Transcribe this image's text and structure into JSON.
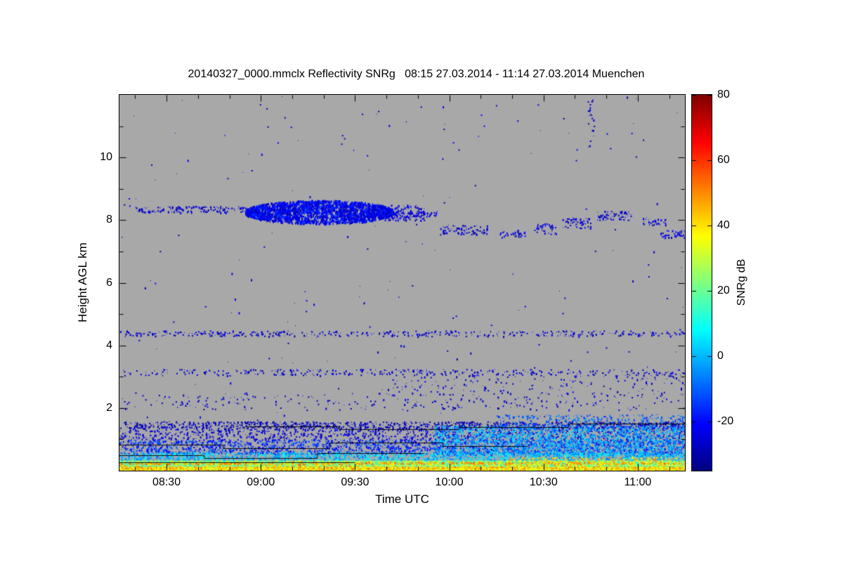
{
  "chart_data": {
    "type": "heatmap",
    "title": "20140327_0000.mmclx Reflectivity SNRg   08:15 27.03.2014 - 11:14 27.03.2014 Muenchen",
    "xlabel": "Time UTC",
    "ylabel": "Height AGL km",
    "x_start": "08:15",
    "x_end": "11:15",
    "x_minor_step_min": 10,
    "x_ticks": [
      {
        "time": "08:30",
        "label": "08:30"
      },
      {
        "time": "09:00",
        "label": "09:00"
      },
      {
        "time": "09:30",
        "label": "09:30"
      },
      {
        "time": "10:00",
        "label": "10:00"
      },
      {
        "time": "10:30",
        "label": "10:30"
      },
      {
        "time": "11:00",
        "label": "11:00"
      }
    ],
    "y_range": [
      0,
      12
    ],
    "y_minor_step": 1,
    "y_ticks": [
      {
        "value": 2,
        "label": "2"
      },
      {
        "value": 4,
        "label": "4"
      },
      {
        "value": 6,
        "label": "6"
      },
      {
        "value": 8,
        "label": "8"
      },
      {
        "value": 10,
        "label": "10"
      }
    ],
    "background_color": "#a8a8a8",
    "colorbar": {
      "label": "SNRg dB",
      "range": [
        -35,
        80
      ],
      "colormap": "jet",
      "ticks": [
        {
          "value": -20,
          "label": "-20"
        },
        {
          "value": 0,
          "label": "0"
        },
        {
          "value": 20,
          "label": "20"
        },
        {
          "value": 40,
          "label": "40"
        },
        {
          "value": 60,
          "label": "60"
        },
        {
          "value": 80,
          "label": "80"
        }
      ]
    },
    "regions": [
      {
        "name": "noise-speckle",
        "t0": "08:15",
        "t1": "11:15",
        "h0": 0.0,
        "h1": 12.0,
        "density": 0.002,
        "v": [
          -30,
          -20
        ],
        "shape": "speckle"
      },
      {
        "name": "vertical-streak",
        "t0": "10:44",
        "t1": "10:46",
        "h0": 10.3,
        "h1": 11.9,
        "density": 0.12,
        "v": [
          -30,
          -24
        ],
        "shape": "speckle"
      },
      {
        "name": "cirrus-leading-line",
        "t0": "08:20",
        "t1": "08:57",
        "h0": 8.25,
        "h1": 8.45,
        "density": 0.4,
        "v": [
          -30,
          -22
        ],
        "shape": "speckle"
      },
      {
        "name": "cirrus-main-cloud",
        "t0": "08:55",
        "t1": "09:42",
        "h0": 7.9,
        "h1": 8.65,
        "density": 0.85,
        "v": [
          -30,
          -14
        ],
        "shape": "lens"
      },
      {
        "name": "cirrus-extension",
        "t0": "09:25",
        "t1": "09:52",
        "h0": 8.0,
        "h1": 8.5,
        "density": 0.4,
        "v": [
          -30,
          -20
        ],
        "shape": "speckle"
      },
      {
        "name": "cirrus-trailing-line",
        "t0": "09:42",
        "t1": "09:56",
        "h0": 8.1,
        "h1": 8.3,
        "density": 0.4,
        "v": [
          -28,
          -20
        ],
        "shape": "speckle"
      },
      {
        "name": "patch-1000",
        "t0": "09:57",
        "t1": "10:12",
        "h0": 7.55,
        "h1": 7.85,
        "density": 0.4,
        "v": [
          -30,
          -20
        ],
        "shape": "speckle"
      },
      {
        "name": "patch-1017",
        "t0": "10:16",
        "t1": "10:24",
        "h0": 7.45,
        "h1": 7.7,
        "density": 0.3,
        "v": [
          -30,
          -20
        ],
        "shape": "speckle"
      },
      {
        "name": "patch-1028",
        "t0": "10:27",
        "t1": "10:34",
        "h0": 7.55,
        "h1": 7.9,
        "density": 0.28,
        "v": [
          -30,
          -20
        ],
        "shape": "speckle"
      },
      {
        "name": "patch-1040",
        "t0": "10:36",
        "t1": "10:45",
        "h0": 7.75,
        "h1": 8.1,
        "density": 0.32,
        "v": [
          -30,
          -20
        ],
        "shape": "speckle"
      },
      {
        "name": "patch-1052",
        "t0": "10:47",
        "t1": "10:58",
        "h0": 8.0,
        "h1": 8.3,
        "density": 0.4,
        "v": [
          -30,
          -20
        ],
        "shape": "speckle"
      },
      {
        "name": "patch-1105",
        "t0": "11:01",
        "t1": "11:09",
        "h0": 7.85,
        "h1": 8.1,
        "density": 0.3,
        "v": [
          -30,
          -20
        ],
        "shape": "speckle"
      },
      {
        "name": "patch-1111",
        "t0": "11:07",
        "t1": "11:15",
        "h0": 7.45,
        "h1": 7.7,
        "density": 0.35,
        "v": [
          -30,
          -20
        ],
        "shape": "speckle"
      },
      {
        "name": "layer-4p4km",
        "t0": "08:15",
        "t1": "11:15",
        "h0": 4.3,
        "h1": 4.48,
        "density": 0.22,
        "v": [
          -30,
          -22
        ],
        "shape": "speckle"
      },
      {
        "name": "layer-3p2km",
        "t0": "08:15",
        "t1": "11:15",
        "h0": 3.05,
        "h1": 3.25,
        "density": 0.16,
        "v": [
          -30,
          -22
        ],
        "shape": "speckle"
      },
      {
        "name": "band-2km",
        "t0": "08:15",
        "t1": "11:15",
        "h0": 1.95,
        "h1": 2.5,
        "density": 0.045,
        "v": [
          -30,
          -22
        ],
        "shape": "speckle"
      },
      {
        "name": "band-2p7km-right",
        "t0": "09:40",
        "t1": "11:15",
        "h0": 2.4,
        "h1": 3.1,
        "density": 0.05,
        "v": [
          -30,
          -22
        ],
        "shape": "speckle"
      },
      {
        "name": "pbl-top-dark-line",
        "t0": "08:15",
        "t1": "11:15",
        "h0": 1.35,
        "h1": 1.58,
        "density": 0.5,
        "v": [
          -32,
          -24
        ],
        "shape": "speckle"
      },
      {
        "name": "pbl-upper",
        "t0": "08:15",
        "t1": "11:15",
        "h0": 1.0,
        "h1": 1.35,
        "density": 0.28,
        "v": [
          -30,
          -20
        ],
        "shape": "speckle"
      },
      {
        "name": "pbl-mid",
        "t0": "08:15",
        "t1": "11:15",
        "h0": 0.55,
        "h1": 1.0,
        "density": 0.5,
        "v": [
          -25,
          -8
        ],
        "shape": "speckle"
      },
      {
        "name": "pbl-lower",
        "t0": "08:15",
        "t1": "11:15",
        "h0": 0.3,
        "h1": 0.6,
        "density": 0.8,
        "v": [
          -10,
          12
        ],
        "shape": "speckle"
      },
      {
        "name": "pbl-right-cyan",
        "t0": "09:55",
        "t1": "11:15",
        "h0": 0.5,
        "h1": 1.45,
        "density": 0.55,
        "v": [
          -12,
          8
        ],
        "shape": "speckle"
      },
      {
        "name": "pbl-right-upper",
        "t0": "10:15",
        "t1": "11:15",
        "h0": 1.3,
        "h1": 1.8,
        "density": 0.25,
        "v": [
          -18,
          -2
        ],
        "shape": "speckle"
      },
      {
        "name": "surface-green-fill",
        "t0": "08:15",
        "t1": "11:15",
        "h0": 0.05,
        "h1": 0.32,
        "density": 1.0,
        "v": [
          8,
          38
        ],
        "shape": "fill"
      },
      {
        "name": "surface-hot-line",
        "t0": "08:15",
        "t1": "11:15",
        "h0": 0.22,
        "h1": 0.3,
        "density": 0.7,
        "v": [
          38,
          58
        ],
        "shape": "speckle"
      },
      {
        "name": "surface-bottom-hot",
        "t0": "08:15",
        "t1": "11:15",
        "h0": 0.0,
        "h1": 0.12,
        "density": 1.0,
        "v": [
          30,
          52
        ],
        "shape": "fill"
      },
      {
        "name": "surface-right-warm",
        "t0": "10:18",
        "t1": "11:15",
        "h0": 0.1,
        "h1": 0.45,
        "density": 0.4,
        "v": [
          30,
          52
        ],
        "shape": "speckle"
      },
      {
        "name": "surface-left-warm",
        "t0": "08:15",
        "t1": "10:18",
        "h0": 0.08,
        "h1": 0.25,
        "density": 0.25,
        "v": [
          35,
          55
        ],
        "shape": "speckle"
      }
    ],
    "contours": [
      {
        "name": "pbl-contour-upper",
        "points": [
          [
            "08:55",
            1.42
          ],
          [
            "09:25",
            1.42
          ],
          [
            "09:25",
            1.32
          ],
          [
            "10:03",
            1.32
          ],
          [
            "10:03",
            1.38
          ],
          [
            "10:38",
            1.38
          ],
          [
            "10:38",
            1.5
          ],
          [
            "11:15",
            1.5
          ]
        ]
      },
      {
        "name": "pbl-contour-mid",
        "points": [
          [
            "08:15",
            0.82
          ],
          [
            "08:48",
            0.82
          ],
          [
            "08:48",
            0.72
          ],
          [
            "09:22",
            0.72
          ],
          [
            "09:22",
            0.9
          ],
          [
            "09:58",
            0.9
          ],
          [
            "09:58",
            0.78
          ],
          [
            "10:25",
            0.78
          ]
        ]
      },
      {
        "name": "pbl-contour-lower",
        "points": [
          [
            "08:15",
            0.5
          ],
          [
            "08:42",
            0.5
          ],
          [
            "08:42",
            0.4
          ],
          [
            "09:18",
            0.4
          ],
          [
            "09:18",
            0.55
          ],
          [
            "09:52",
            0.55
          ]
        ]
      },
      {
        "name": "pbl-contour-base",
        "points": [
          [
            "08:15",
            0.27
          ],
          [
            "09:30",
            0.27
          ]
        ]
      }
    ]
  }
}
